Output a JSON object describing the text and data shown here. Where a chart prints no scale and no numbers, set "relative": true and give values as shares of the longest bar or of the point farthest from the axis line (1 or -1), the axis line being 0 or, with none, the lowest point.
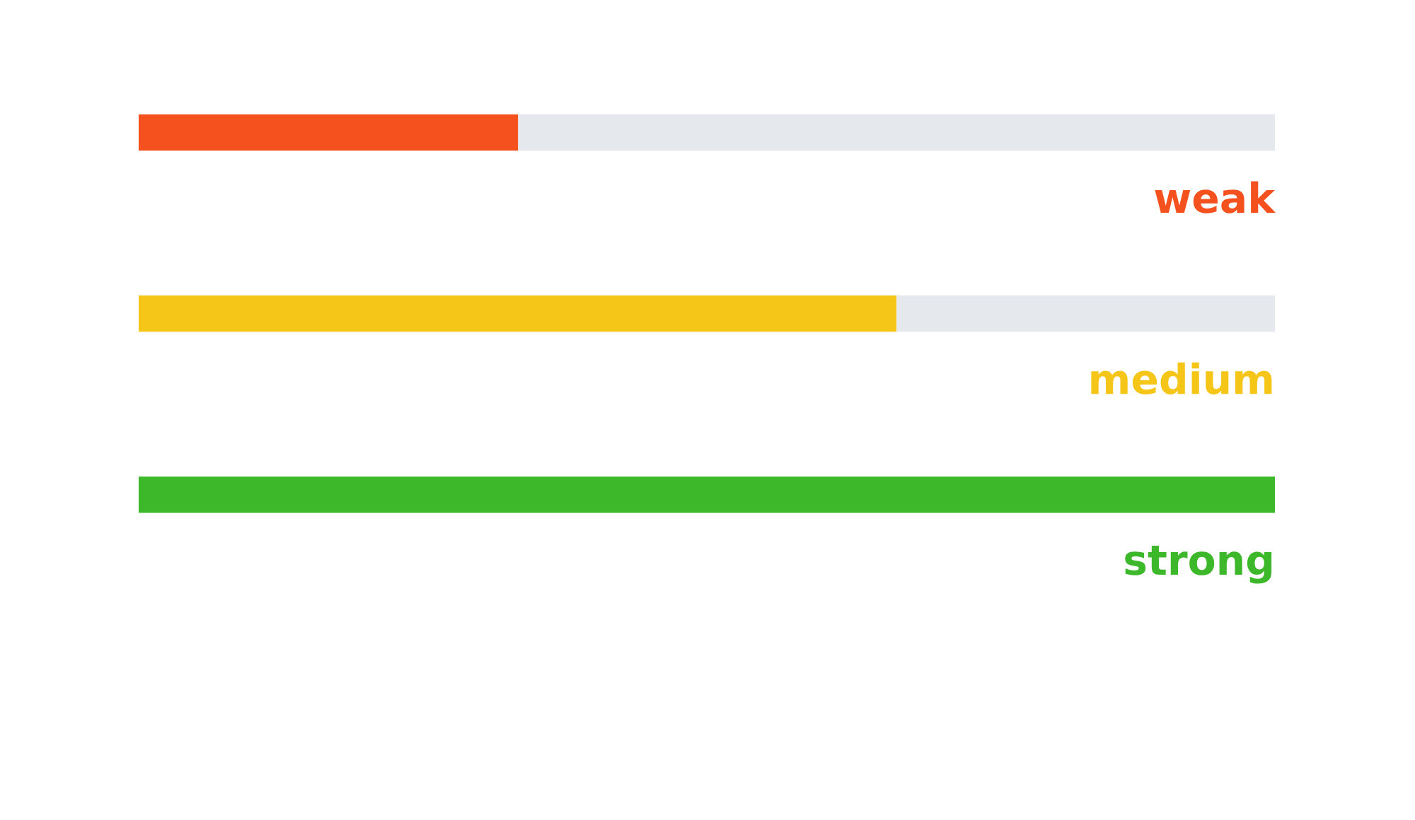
{
  "chart_data": {
    "type": "bar",
    "orientation": "horizontal",
    "stacked": true,
    "relative": true,
    "categories": [
      "weak",
      "medium",
      "strong"
    ],
    "series": [
      {
        "colors": [
          "#f4511e",
          "#f5c518",
          "#3db82a"
        ],
        "values": [
          0.334,
          0.667,
          1
        ]
      },
      {
        "color": "#e5e8ec",
        "values": [
          0.666,
          0.333,
          0
        ]
      }
    ]
  }
}
